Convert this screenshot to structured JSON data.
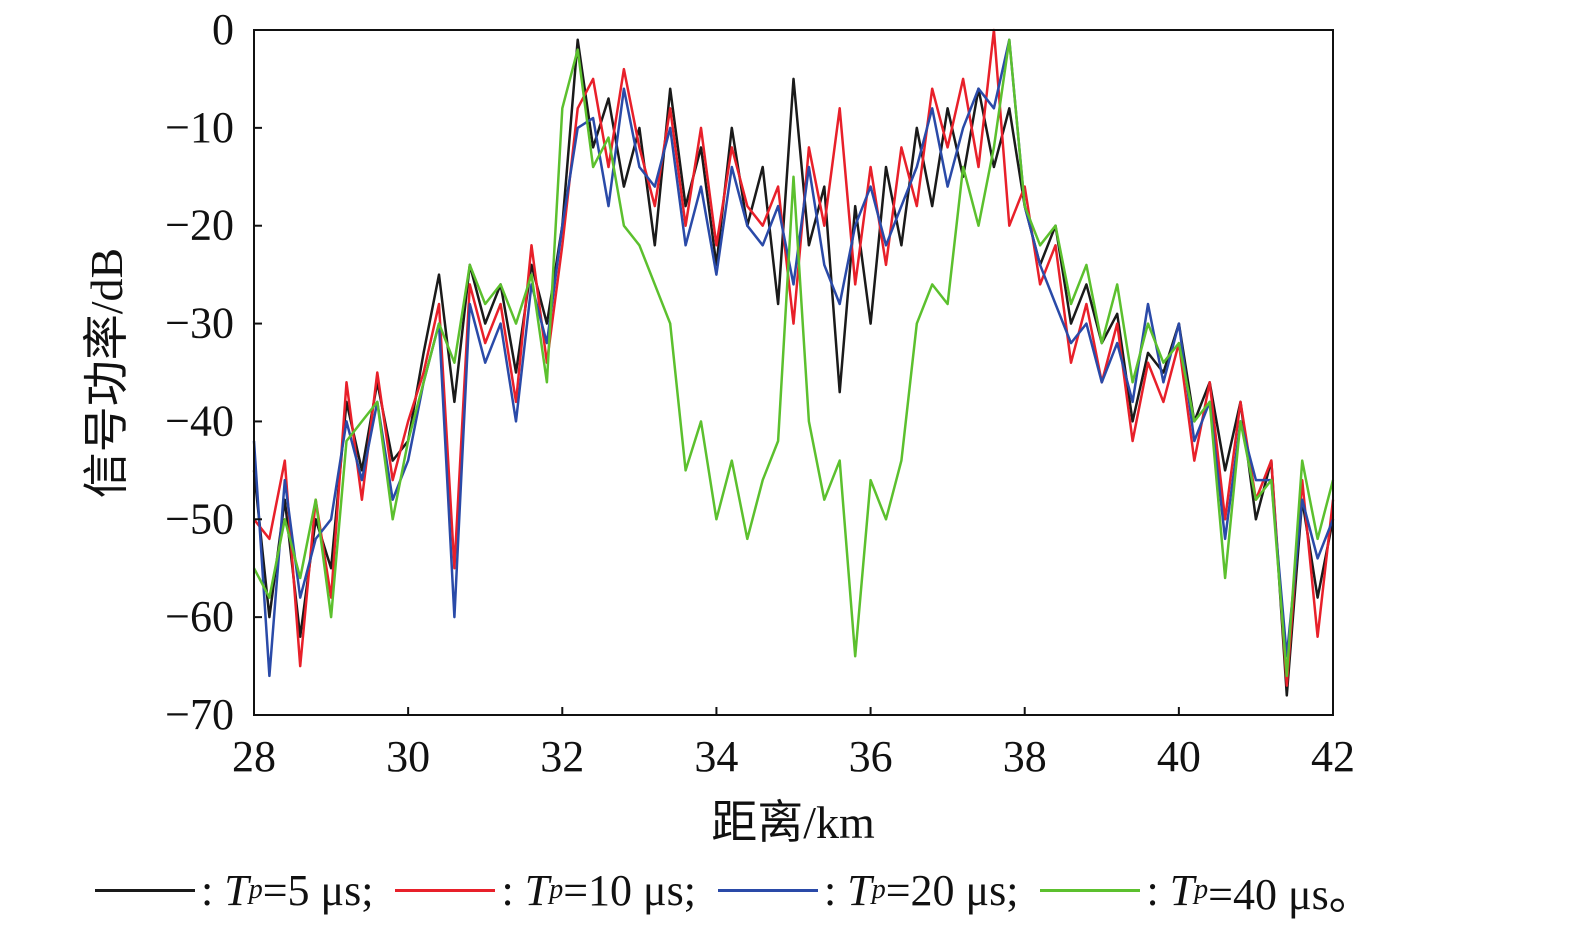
{
  "chart_data": {
    "type": "line",
    "title": "",
    "xlabel": "距离/km",
    "ylabel": "信号功率/dB",
    "xlim": [
      28,
      42
    ],
    "ylim": [
      -70,
      0
    ],
    "xticks": [
      "28",
      "30",
      "32",
      "34",
      "36",
      "38",
      "40",
      "42"
    ],
    "yticks": [
      "0",
      "−10",
      "−20",
      "−30",
      "−40",
      "−50",
      "−60",
      "−70"
    ],
    "x_start": 28,
    "x_step": 0.2,
    "legend_position": "bottom",
    "series": [
      {
        "name": "Tp=5 μs",
        "symbol": "T",
        "sub": "p",
        "text": "=5 μs;",
        "color": "#1a1a1a",
        "values": [
          -45,
          -60,
          -48,
          -62,
          -50,
          -55,
          -38,
          -45,
          -36,
          -44,
          -42,
          -33,
          -25,
          -38,
          -24,
          -30,
          -26,
          -35,
          -24,
          -30,
          -20,
          -1,
          -12,
          -7,
          -16,
          -10,
          -22,
          -6,
          -18,
          -12,
          -24,
          -10,
          -20,
          -14,
          -28,
          -5,
          -22,
          -16,
          -37,
          -18,
          -30,
          -14,
          -22,
          -10,
          -18,
          -8,
          -15,
          -6,
          -14,
          -8,
          -18,
          -24,
          -20,
          -30,
          -26,
          -32,
          -29,
          -40,
          -33,
          -35,
          -30,
          -40,
          -36,
          -45,
          -38,
          -50,
          -44,
          -68,
          -48,
          -58,
          -50
        ]
      },
      {
        "name": "Tp=10 μs",
        "symbol": "T",
        "sub": "p",
        "text": "=10 μs;",
        "color": "#e8202a",
        "values": [
          -50,
          -52,
          -44,
          -65,
          -48,
          -58,
          -36,
          -48,
          -35,
          -46,
          -40,
          -35,
          -28,
          -55,
          -26,
          -32,
          -28,
          -38,
          -22,
          -34,
          -22,
          -8,
          -5,
          -14,
          -4,
          -12,
          -18,
          -8,
          -20,
          -10,
          -22,
          -12,
          -18,
          -20,
          -16,
          -30,
          -12,
          -20,
          -8,
          -26,
          -14,
          -24,
          -12,
          -18,
          -6,
          -12,
          -5,
          -14,
          0,
          -20,
          -16,
          -26,
          -22,
          -34,
          -28,
          -36,
          -30,
          -42,
          -34,
          -38,
          -32,
          -44,
          -36,
          -50,
          -38,
          -48,
          -44,
          -67,
          -46,
          -62,
          -48
        ]
      },
      {
        "name": "Tp=20 μs",
        "symbol": "T",
        "sub": "p",
        "text": "=20 μs;",
        "color": "#2a4aa8",
        "values": [
          -42,
          -66,
          -46,
          -58,
          -52,
          -50,
          -40,
          -46,
          -38,
          -48,
          -44,
          -36,
          -30,
          -60,
          -28,
          -34,
          -30,
          -40,
          -26,
          -32,
          -20,
          -10,
          -9,
          -18,
          -6,
          -14,
          -16,
          -10,
          -22,
          -16,
          -25,
          -14,
          -20,
          -22,
          -18,
          -26,
          -14,
          -24,
          -28,
          -20,
          -16,
          -22,
          -18,
          -14,
          -8,
          -16,
          -10,
          -6,
          -8,
          -1,
          -18,
          -24,
          -28,
          -32,
          -30,
          -36,
          -32,
          -38,
          -28,
          -36,
          -30,
          -42,
          -38,
          -52,
          -40,
          -46,
          -46,
          -64,
          -48,
          -54,
          -50
        ]
      },
      {
        "name": "Tp=40 μs",
        "symbol": "T",
        "sub": "p",
        "text": "=40 μs。",
        "color": "#5cc02e",
        "values": [
          -55,
          -58,
          -50,
          -56,
          -48,
          -60,
          -42,
          -40,
          -38,
          -50,
          -42,
          -36,
          -30,
          -34,
          -24,
          -28,
          -26,
          -30,
          -25,
          -36,
          -8,
          -2,
          -14,
          -11,
          -20,
          -22,
          -26,
          -30,
          -45,
          -40,
          -50,
          -44,
          -52,
          -46,
          -42,
          -15,
          -40,
          -48,
          -44,
          -64,
          -46,
          -50,
          -44,
          -30,
          -26,
          -28,
          -14,
          -20,
          -12,
          -1,
          -18,
          -22,
          -20,
          -28,
          -24,
          -32,
          -26,
          -36,
          -30,
          -34,
          -32,
          -40,
          -38,
          -56,
          -40,
          -48,
          -46,
          -66,
          -44,
          -52,
          -46
        ]
      }
    ]
  }
}
